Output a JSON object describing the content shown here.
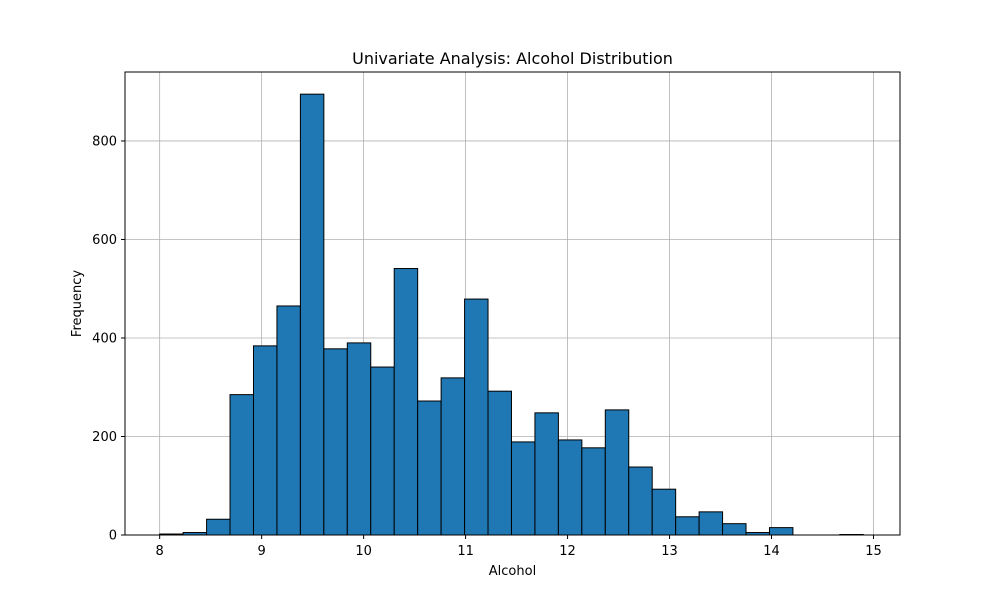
{
  "chart_data": {
    "type": "bar",
    "title": "Univariate Analysis: Alcohol Distribution",
    "xlabel": "Alcohol",
    "ylabel": "Frequency",
    "grid": true,
    "xlim": [
      7.66,
      15.26
    ],
    "ylim": [
      0,
      940
    ],
    "xticks": [
      8,
      9,
      10,
      11,
      12,
      13,
      14,
      15
    ],
    "yticks": [
      0,
      200,
      400,
      600,
      800
    ],
    "bar_color": "#1f77b4",
    "bin_edges": [
      8.0,
      8.23,
      8.46,
      8.69,
      8.92,
      9.15,
      9.38,
      9.61,
      9.84,
      10.07,
      10.3,
      10.53,
      10.76,
      10.99,
      11.22,
      11.45,
      11.68,
      11.91,
      12.14,
      12.37,
      12.6,
      12.83,
      13.06,
      13.29,
      13.52,
      13.75,
      13.98,
      14.21,
      14.44,
      14.67,
      14.9
    ],
    "values": [
      2,
      5,
      32,
      285,
      384,
      465,
      895,
      378,
      390,
      341,
      541,
      272,
      319,
      479,
      292,
      189,
      248,
      193,
      177,
      254,
      138,
      93,
      37,
      47,
      23,
      5,
      15,
      0,
      0,
      1
    ]
  }
}
